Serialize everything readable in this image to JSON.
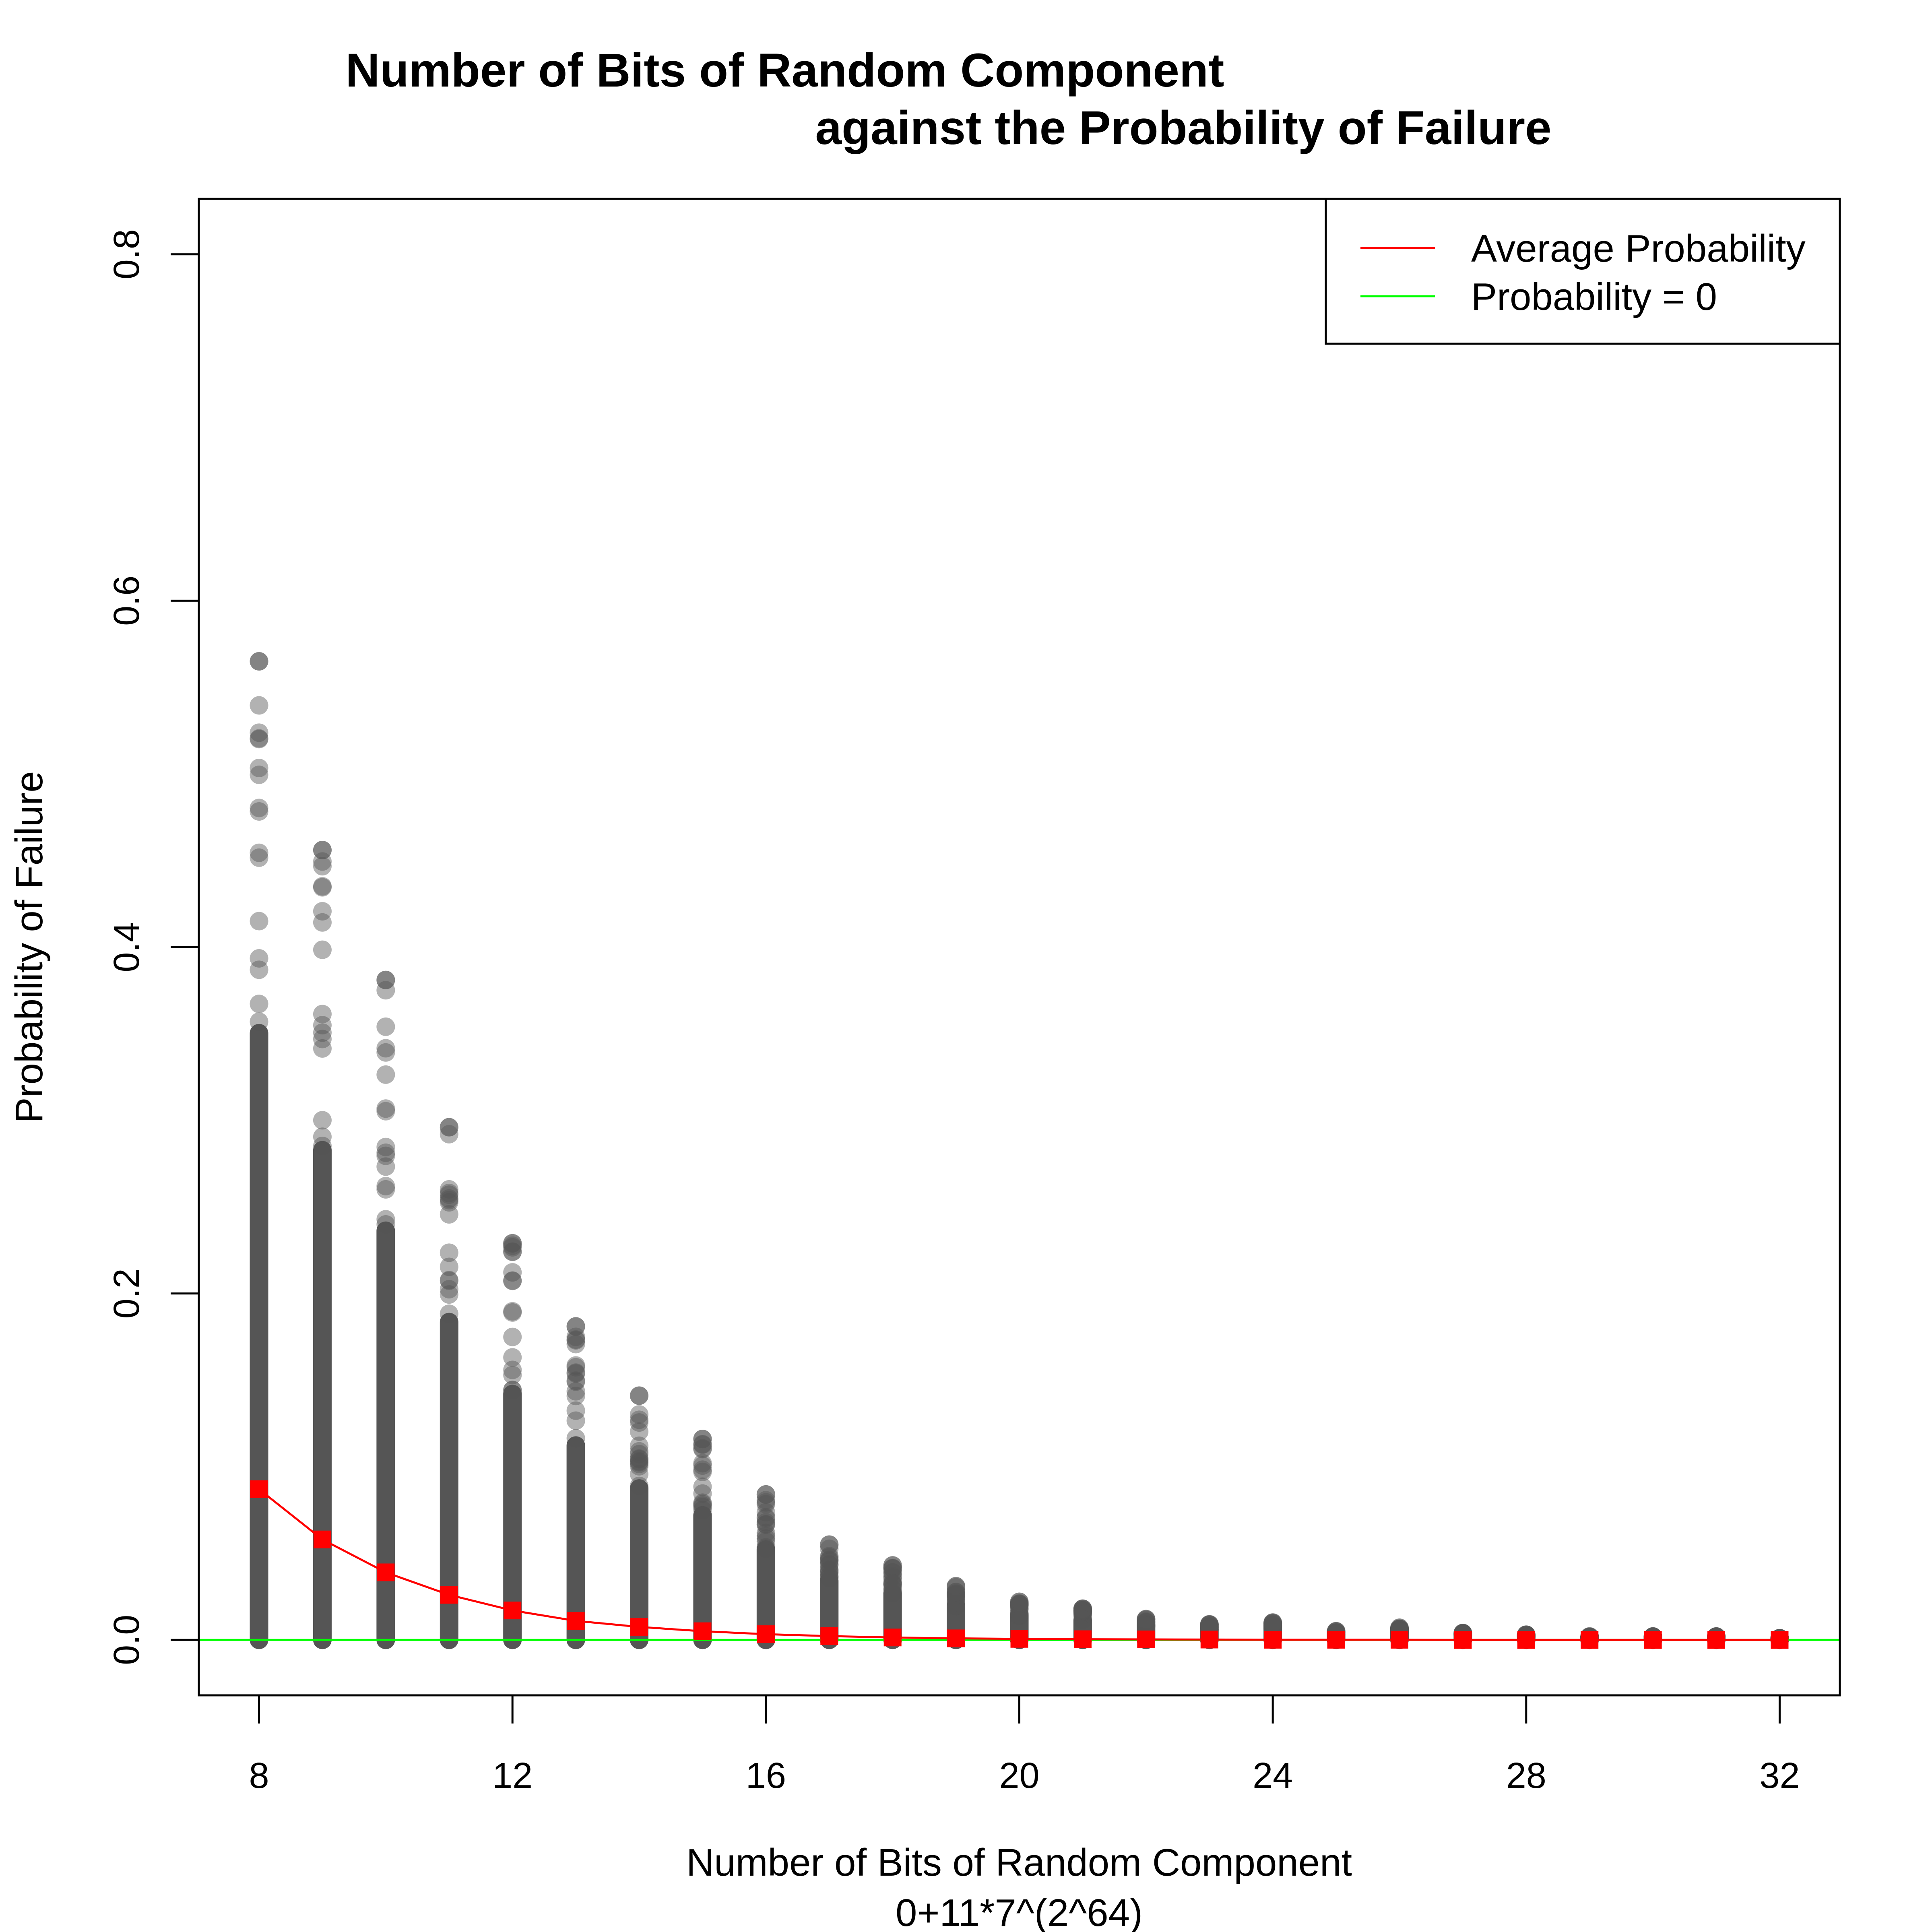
{
  "chart_data": {
    "type": "scatter",
    "title_line1": "Number of Bits of Random Component",
    "title_line2": "against the Probability of Failure",
    "xlabel": "Number of Bits of Random Component",
    "xsublabel": "0+11*7^(2^64)",
    "ylabel": "Probability of Failure",
    "xlim": [
      7.05,
      32.95
    ],
    "ylim": [
      -0.032,
      0.832
    ],
    "x_ticks": [
      8,
      12,
      16,
      20,
      24,
      28,
      32
    ],
    "y_ticks": [
      0.0,
      0.2,
      0.4,
      0.6,
      0.8
    ],
    "y_tick_labels": [
      "0.0",
      "0.2",
      "0.4",
      "0.6",
      "0.8"
    ],
    "grid": false,
    "legend_position": "top-right",
    "legend": [
      {
        "label": "Average Probability",
        "color": "#ff0000"
      },
      {
        "label": "Probability = 0",
        "color": "#00ff00"
      }
    ],
    "scatter_ranges": {
      "x": [
        8,
        9,
        10,
        11,
        12,
        13,
        14,
        15,
        16,
        17,
        18,
        19,
        20,
        21,
        22,
        23,
        24,
        25,
        26,
        27,
        28,
        29,
        30,
        31,
        32
      ],
      "min": [
        0,
        0,
        0,
        0,
        0,
        0,
        0,
        0,
        0,
        0,
        0,
        0,
        0,
        0,
        0,
        0,
        0,
        0,
        0,
        0,
        0,
        0,
        0,
        0,
        0
      ],
      "max": [
        0.565,
        0.456,
        0.381,
        0.296,
        0.229,
        0.181,
        0.141,
        0.116,
        0.084,
        0.055,
        0.043,
        0.031,
        0.022,
        0.018,
        0.012,
        0.009,
        0.01,
        0.005,
        0.007,
        0.004,
        0.003,
        0.002,
        0.002,
        0.002,
        0.001
      ]
    },
    "series": [
      {
        "name": "Average Probability",
        "x": [
          8,
          9,
          10,
          11,
          12,
          13,
          14,
          15,
          16,
          17,
          18,
          19,
          20,
          21,
          22,
          23,
          24,
          25,
          26,
          27,
          28,
          29,
          30,
          31,
          32
        ],
        "values": [
          0.087,
          0.058,
          0.039,
          0.026,
          0.017,
          0.011,
          0.0075,
          0.005,
          0.0033,
          0.0022,
          0.0014,
          0.0009,
          0.0006,
          0.0004,
          0.0003,
          0.0002,
          0.0001,
          0.0001,
          0.0001,
          0.0,
          0.0,
          0.0,
          0.0,
          0.0,
          0.0
        ]
      }
    ],
    "reference_line": {
      "name": "Probability = 0",
      "y": 0
    },
    "colors": {
      "points": "#555555",
      "average": "#ff0000",
      "zero_line": "#00ff00"
    }
  }
}
